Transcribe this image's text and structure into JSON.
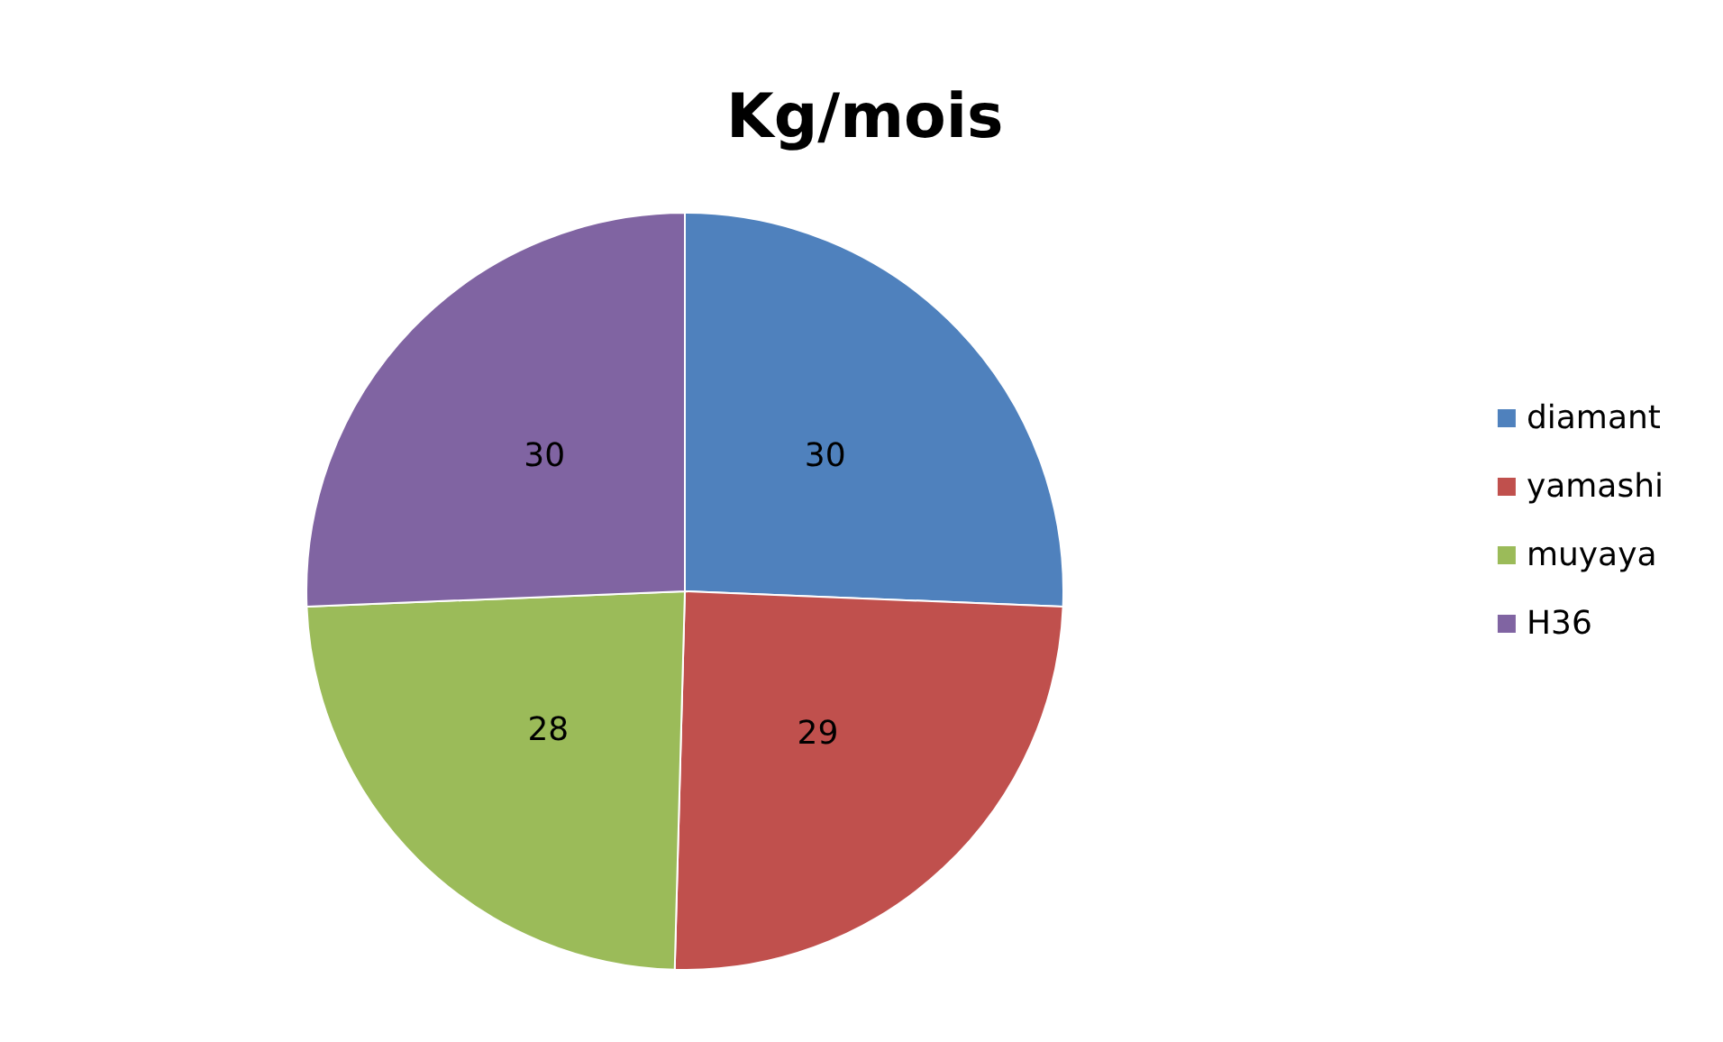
{
  "chart_data": {
    "type": "pie",
    "title": "Kg/mois",
    "categories": [
      "diamant",
      "yamashi",
      "muyaya",
      "H36"
    ],
    "values": [
      30,
      29,
      28,
      30
    ],
    "colors": [
      "#4f81bd",
      "#c0504d",
      "#9bbb59",
      "#8064a2"
    ],
    "data_labels": true,
    "legend": "right"
  }
}
